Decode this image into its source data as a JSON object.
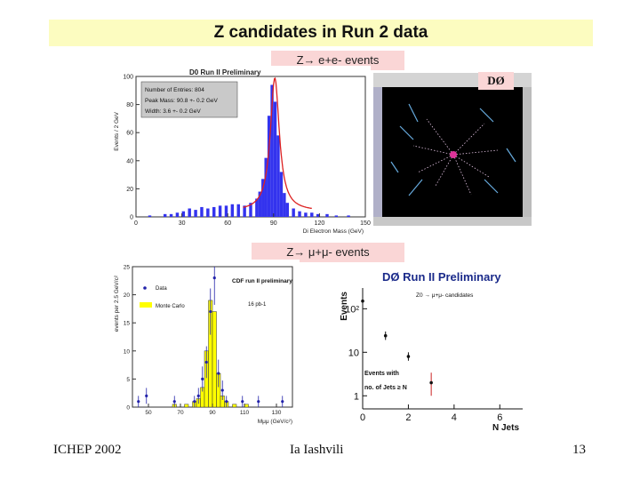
{
  "slide": {
    "title": "Z candidates in Run 2 data",
    "ee_label": "Z→ e+e- events",
    "mm_label": "Z→ μ+μ- events",
    "footer_left": "ICHEP 2002",
    "footer_center": "Ia Iashvili",
    "footer_right": "13"
  },
  "event_display": {
    "logo": "DØ",
    "colors": {
      "background": "#000000",
      "tracks": "#e0c0e0",
      "hits": "#66aadd"
    }
  },
  "chart_data": [
    {
      "type": "bar",
      "title": "D0 Run II Preliminary",
      "xlabel": "Di Electron Mass (GeV)",
      "ylabel": "Events / 2 GeV",
      "xlim": [
        0,
        150
      ],
      "ylim": [
        0,
        100
      ],
      "xticks": [
        0,
        30,
        60,
        90,
        120,
        150
      ],
      "yticks": [
        0,
        20,
        40,
        60,
        80,
        100
      ],
      "stats": [
        "Number of Entries: 804",
        "Peak Mass: 90.8 +- 0.2 GeV",
        "Width: 3.6 +- 0.2 GeV"
      ],
      "bins": [
        [
          10,
          1
        ],
        [
          20,
          2
        ],
        [
          24,
          2
        ],
        [
          28,
          3
        ],
        [
          32,
          4
        ],
        [
          36,
          6
        ],
        [
          40,
          5
        ],
        [
          44,
          7
        ],
        [
          48,
          6
        ],
        [
          52,
          7
        ],
        [
          56,
          8
        ],
        [
          60,
          8
        ],
        [
          64,
          9
        ],
        [
          68,
          9
        ],
        [
          72,
          8
        ],
        [
          76,
          10
        ],
        [
          80,
          13
        ],
        [
          82,
          18
        ],
        [
          84,
          27
        ],
        [
          86,
          42
        ],
        [
          88,
          72
        ],
        [
          90,
          94
        ],
        [
          92,
          82
        ],
        [
          94,
          58
        ],
        [
          96,
          32
        ],
        [
          98,
          17
        ],
        [
          100,
          10
        ],
        [
          104,
          6
        ],
        [
          108,
          4
        ],
        [
          112,
          3
        ],
        [
          116,
          3
        ],
        [
          120,
          2
        ],
        [
          126,
          2
        ],
        [
          132,
          1
        ],
        [
          140,
          1
        ]
      ],
      "colors": {
        "fill": "#3333ee",
        "fit": "#dd2222",
        "stats_box": "#c9c9c9"
      }
    },
    {
      "type": "bar",
      "title": "CDF run II preliminary",
      "luminosity": "16 pb-1",
      "xlabel": "Mμμ (GeV/c²)",
      "ylabel": "events per 2.5 GeV/c²",
      "xlim": [
        40,
        140
      ],
      "ylim": [
        0,
        25
      ],
      "xticks": [
        50,
        70,
        90,
        110,
        130
      ],
      "yticks": [
        0,
        5,
        10,
        15,
        20,
        25
      ],
      "legend": [
        "Data",
        "Monte Carlo"
      ],
      "mc_bins": [
        [
          66.25,
          0.5
        ],
        [
          73.75,
          0.5
        ],
        [
          78.75,
          1
        ],
        [
          81.25,
          1.5
        ],
        [
          83.75,
          3.5
        ],
        [
          86.25,
          10
        ],
        [
          88.75,
          19
        ],
        [
          91.25,
          17
        ],
        [
          93.75,
          6
        ],
        [
          96.25,
          2
        ],
        [
          98.75,
          1
        ],
        [
          103.75,
          0.5
        ],
        [
          111.25,
          0.5
        ]
      ],
      "data_points": [
        [
          43.75,
          1
        ],
        [
          48.75,
          2
        ],
        [
          66.25,
          1
        ],
        [
          78.75,
          1
        ],
        [
          81.25,
          2
        ],
        [
          83.75,
          5
        ],
        [
          86.25,
          8
        ],
        [
          88.75,
          17
        ],
        [
          91.25,
          23
        ],
        [
          93.75,
          6
        ],
        [
          96.25,
          3
        ],
        [
          98.75,
          1
        ],
        [
          108.75,
          1
        ],
        [
          118.75,
          1
        ],
        [
          133.75,
          1
        ]
      ],
      "colors": {
        "mc": "#ffff00",
        "data": "#2222aa"
      }
    },
    {
      "type": "scatter",
      "title": "DØ Run II Preliminary",
      "subtitle": "Z0 → μ+μ- candidates",
      "annotation": [
        "Events with",
        "no. of Jets ≥ N"
      ],
      "xlabel": "N Jets",
      "ylabel": "Events",
      "yscale": "log",
      "xlim": [
        0,
        7
      ],
      "ylim": [
        0.5,
        300
      ],
      "xticks": [
        0,
        2,
        4,
        6
      ],
      "yticks": [
        1,
        10,
        100
      ],
      "points": [
        {
          "x": 0,
          "y": 150
        },
        {
          "x": 1,
          "y": 24
        },
        {
          "x": 2,
          "y": 8
        },
        {
          "x": 3,
          "y": 2
        }
      ],
      "colors": {
        "title": "#1a2a8a",
        "marker": "#111111",
        "error": "#cc2222"
      }
    }
  ]
}
